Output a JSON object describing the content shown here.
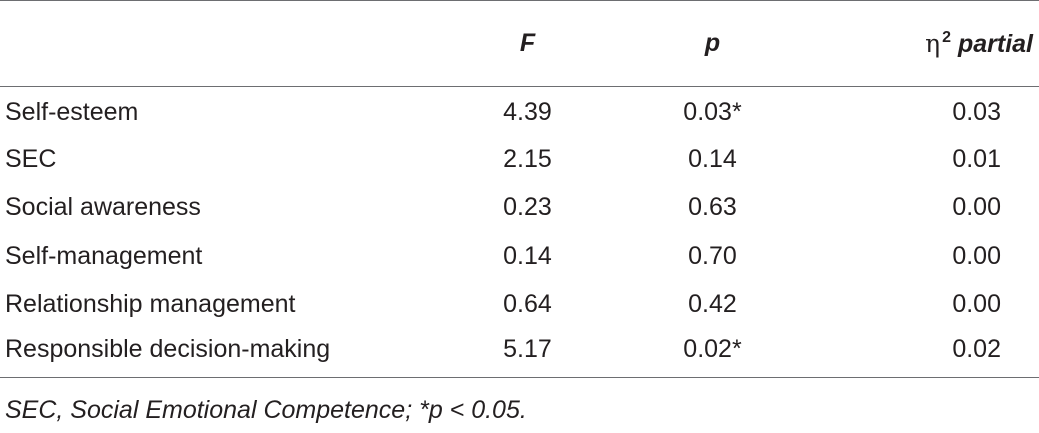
{
  "table": {
    "headers": {
      "label": "",
      "f": "F",
      "p": "p",
      "eta_symbol": "η",
      "eta_sup": "2",
      "eta_suffix": "partial"
    },
    "rows": [
      {
        "label": "Self-esteem",
        "f": "4.39",
        "p": "0.03*",
        "eta": "0.03"
      },
      {
        "label": "SEC",
        "f": "2.15",
        "p": "0.14",
        "eta": "0.01"
      },
      {
        "label": "Social awareness",
        "f": "0.23",
        "p": "0.63",
        "eta": "0.00"
      },
      {
        "label": "Self-management",
        "f": "0.14",
        "p": "0.70",
        "eta": "0.00"
      },
      {
        "label": "Relationship management",
        "f": "0.64",
        "p": "0.42",
        "eta": "0.00"
      },
      {
        "label": "Responsible decision-making",
        "f": "5.17",
        "p": "0.02*",
        "eta": "0.02"
      }
    ]
  },
  "footnote": "SEC, Social Emotional Competence; *p < 0.05."
}
